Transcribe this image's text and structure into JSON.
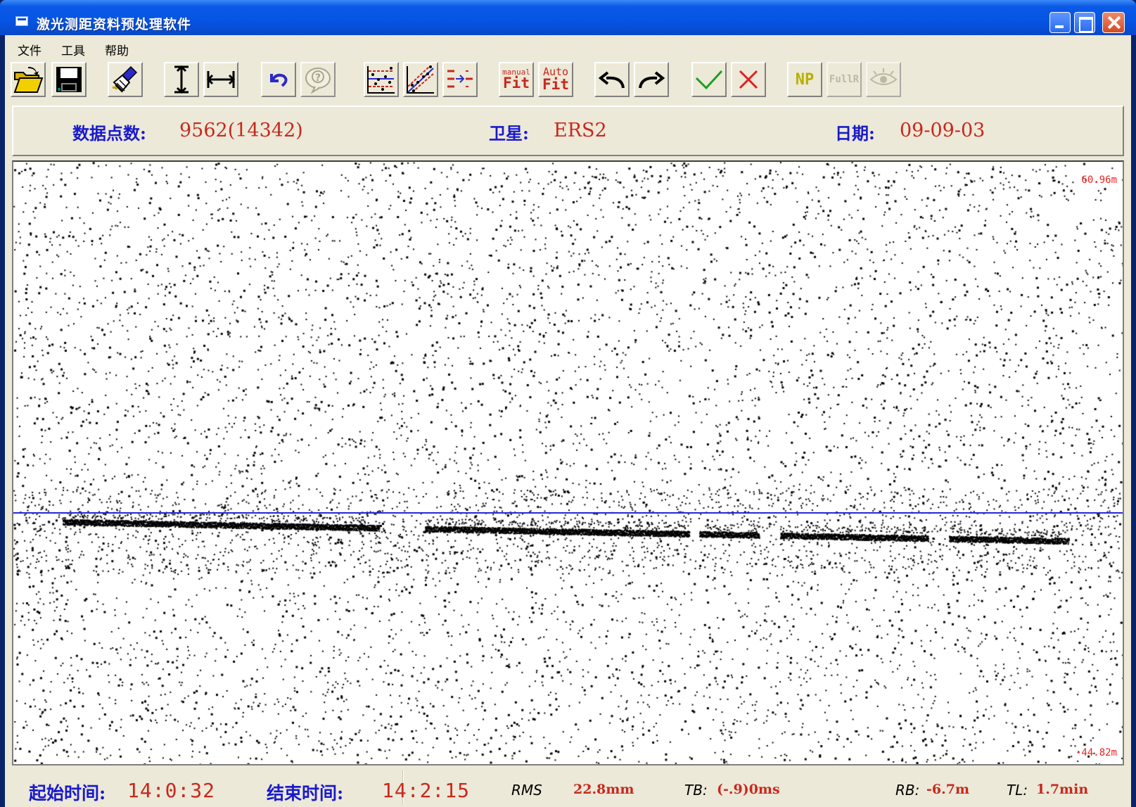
{
  "window": {
    "title": "激光测距资料预处理软件"
  },
  "menu": {
    "items": [
      "文件",
      "工具",
      "帮助"
    ]
  },
  "toolbar": {
    "buttons": [
      {
        "icon": "open-folder-icon"
      },
      {
        "icon": "save-disk-icon"
      },
      {
        "icon": "brush-clear-icon"
      },
      {
        "icon": "vertical-stretch-icon"
      },
      {
        "icon": "horizontal-stretch-icon"
      },
      {
        "icon": "undo-zoom-icon"
      },
      {
        "icon": "help-bubble-icon"
      },
      {
        "icon": "band-filter-icon"
      },
      {
        "icon": "diagonal-fit-icon"
      },
      {
        "icon": "shift-arrow-icon"
      },
      {
        "icon": "manual-fit-icon",
        "top": "manual",
        "bottom": "Fit"
      },
      {
        "icon": "auto-fit-icon",
        "top": "Auto",
        "bottom": "Fit"
      },
      {
        "icon": "undo-arrow-icon"
      },
      {
        "icon": "redo-arrow-icon"
      },
      {
        "icon": "accept-check-icon"
      },
      {
        "icon": "reject-cross-icon"
      },
      {
        "icon": "np-icon",
        "text": "NP"
      },
      {
        "icon": "fullrate-icon",
        "text": "FullR"
      },
      {
        "icon": "eye-icon"
      }
    ]
  },
  "info": {
    "points_label": "数据点数:",
    "points_value": "9562(14342)",
    "satellite_label": "卫星:",
    "satellite_value": "ERS2",
    "date_label": "日期:",
    "date_value": "09-09-03"
  },
  "plot": {
    "top_label": "60.96m",
    "bottom_label": "-44.82m",
    "y_max": 60.96,
    "y_min": -44.82,
    "colors": {
      "points": "#000000",
      "fit_line": "#2727d9",
      "scale": "#ee2222"
    }
  },
  "status": {
    "start_label": "起始时间:",
    "start_value": "14:0:32",
    "end_label": "结束时间:",
    "end_value": "14:2:15",
    "rms_label": "RMS",
    "rms_value": "22.8mm",
    "tb_label": "TB:",
    "tb_value": "(-.9)0ms",
    "rb_label": "RB:",
    "rb_value": "-6.7m",
    "tl_label": "TL:",
    "tl_value": "1.7min"
  }
}
